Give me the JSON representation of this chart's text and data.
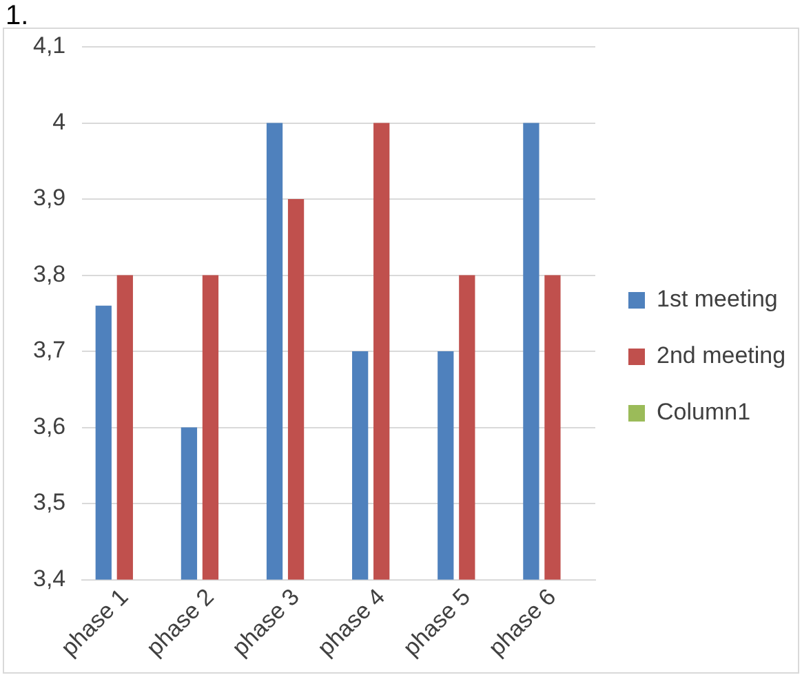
{
  "chart_data": {
    "type": "bar",
    "categories": [
      "phase 1",
      "phase 2",
      "phase 3",
      "phase 4",
      "phase 5",
      "phase 6"
    ],
    "series": [
      {
        "name": "1st meeting",
        "color": "#4f81bd",
        "values": [
          3.76,
          3.6,
          4.0,
          3.7,
          3.7,
          4.0
        ]
      },
      {
        "name": "2nd meeting",
        "color": "#c0504d",
        "values": [
          3.8,
          3.8,
          3.9,
          4.0,
          3.8,
          3.8
        ]
      },
      {
        "name": "Column1",
        "color": "#9bbb59",
        "values": [
          null,
          null,
          null,
          null,
          null,
          null
        ]
      }
    ],
    "ylim": [
      3.4,
      4.1
    ],
    "yticks": [
      {
        "value": 3.4,
        "label": "3,4"
      },
      {
        "value": 3.5,
        "label": "3,5"
      },
      {
        "value": 3.6,
        "label": "3,6"
      },
      {
        "value": 3.7,
        "label": "3,7"
      },
      {
        "value": 3.8,
        "label": "3,8"
      },
      {
        "value": 3.9,
        "label": "3,9"
      },
      {
        "value": 4,
        "label": "4"
      },
      {
        "value": 4.1,
        "label": "4,1"
      }
    ],
    "grid": "y",
    "legend": "right",
    "annotations": [
      "1."
    ]
  }
}
